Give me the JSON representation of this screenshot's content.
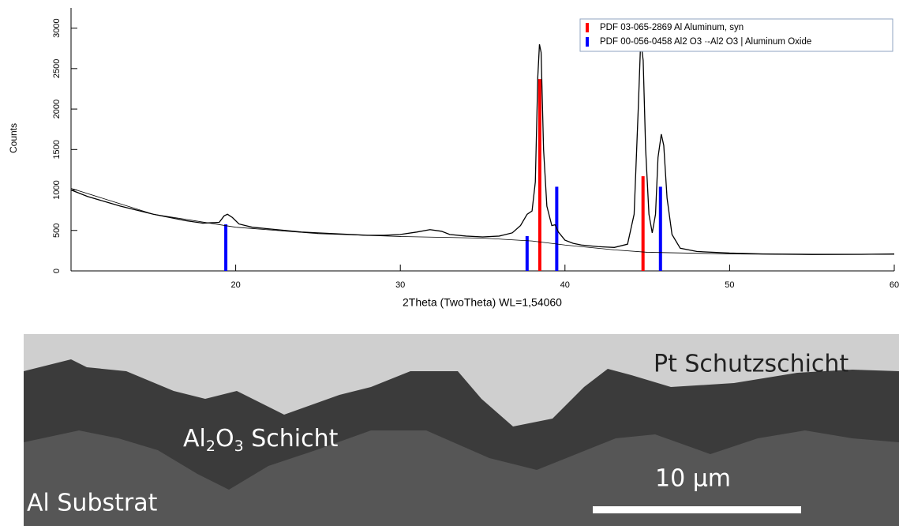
{
  "chart_data": {
    "type": "line",
    "x_label": "2Theta (TwoTheta) WL=1,54060",
    "y_label": "Counts",
    "xlim": [
      10,
      60
    ],
    "xticks": [
      20,
      30,
      40,
      50,
      60
    ],
    "ylim": [
      0,
      3250
    ],
    "yticks": [
      0,
      500,
      1000,
      1500,
      2000,
      2500,
      3000
    ],
    "series": [
      {
        "color": "#000000",
        "x": [
          10,
          11,
          12,
          13,
          14,
          15,
          16,
          17,
          18,
          19,
          19.3,
          19.5,
          19.8,
          20.2,
          21,
          22,
          23,
          24,
          25,
          26,
          27,
          28,
          29,
          30,
          31,
          31.8,
          32.5,
          33,
          34,
          35,
          36,
          36.8,
          37.3,
          37.7,
          38.0,
          38.2,
          38.35,
          38.45,
          38.55,
          38.7,
          38.9,
          39.2,
          39.4,
          39.6,
          40,
          40.5,
          41,
          42,
          43,
          43.8,
          44.2,
          44.45,
          44.6,
          44.75,
          44.9,
          45.1,
          45.3,
          45.5,
          45.65,
          45.85,
          46.0,
          46.2,
          46.5,
          47,
          48,
          50,
          52,
          55,
          58,
          60
        ],
        "values": [
          1000,
          920,
          860,
          800,
          750,
          700,
          660,
          620,
          590,
          600,
          680,
          700,
          660,
          580,
          540,
          520,
          500,
          480,
          470,
          460,
          450,
          440,
          440,
          450,
          480,
          510,
          490,
          450,
          430,
          420,
          430,
          470,
          560,
          700,
          740,
          1100,
          2400,
          2800,
          2700,
          1500,
          800,
          560,
          570,
          480,
          380,
          340,
          320,
          300,
          290,
          330,
          700,
          2000,
          2850,
          2600,
          1500,
          700,
          470,
          700,
          1400,
          1690,
          1550,
          900,
          450,
          280,
          240,
          220,
          210,
          205,
          205,
          210
        ]
      },
      {
        "color": "#000000",
        "x": [
          10,
          15,
          20,
          25,
          30,
          35,
          38,
          40,
          43,
          45,
          50,
          55,
          60
        ],
        "values": [
          1020,
          700,
          540,
          460,
          425,
          405,
          370,
          320,
          260,
          230,
          210,
          200,
          205
        ]
      }
    ],
    "references": [
      {
        "name": "PDF 03-065-2869 Al Aluminum, syn",
        "color": "#ff0000",
        "positions": [
          38.47,
          44.74
        ],
        "values": [
          2370,
          1170
        ]
      },
      {
        "name": "PDF 00-056-0458 Al2 O3 ·-Al2 O3 | Aluminum Oxide",
        "color": "#0000ff",
        "positions": [
          19.4,
          37.7,
          39.5,
          45.8
        ],
        "values": [
          575,
          430,
          1040,
          1040
        ]
      }
    ]
  },
  "image": {
    "labels": {
      "top": "Pt Schutzschicht",
      "middle": [
        "Al",
        "2",
        "O",
        "3",
        " Schicht"
      ],
      "bottom": "Al Substrat",
      "scale": "10 µm"
    }
  }
}
